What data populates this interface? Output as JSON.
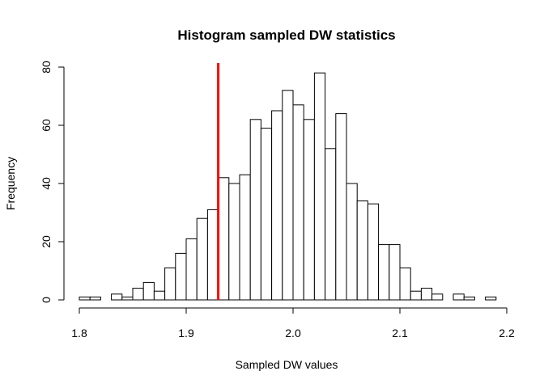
{
  "chart_data": {
    "type": "bar",
    "title": "Histogram sampled DW statistics",
    "xlabel": "Sampled DW values",
    "ylabel": "Frequency",
    "xlim": [
      1.8,
      2.2
    ],
    "ylim": [
      0,
      80
    ],
    "bin_width": 0.01,
    "bin_edges_start": 1.8,
    "x_ticks": [
      1.8,
      1.9,
      2.0,
      2.1,
      2.2
    ],
    "x_tick_labels": [
      "1.8",
      "1.9",
      "2.0",
      "2.1",
      "2.2"
    ],
    "y_ticks": [
      0,
      20,
      40,
      60,
      80
    ],
    "y_tick_labels": [
      "0",
      "20",
      "40",
      "60",
      "80"
    ],
    "values": [
      1,
      1,
      0,
      2,
      1,
      4,
      6,
      3,
      11,
      16,
      21,
      28,
      31,
      42,
      40,
      43,
      62,
      59,
      65,
      72,
      67,
      62,
      78,
      52,
      64,
      40,
      34,
      33,
      19,
      19,
      11,
      3,
      4,
      2,
      0,
      2,
      1,
      0,
      1
    ],
    "reference_line": {
      "x": 1.93,
      "color": "#ff0000"
    },
    "grid": false
  }
}
